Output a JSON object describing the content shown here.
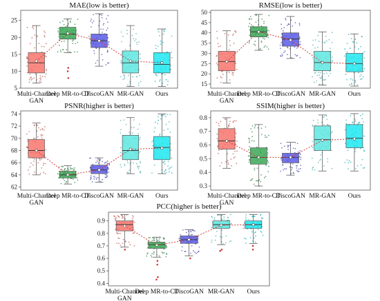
{
  "chart_data": [
    {
      "type": "box",
      "title": "MAE(low is better)",
      "categories": [
        "Multi-Channel GAN",
        "Deep MR-to-CT",
        "DiscoGAN",
        "MR-GAN",
        "Ours"
      ],
      "yticks": [
        5,
        10,
        15,
        20,
        25
      ],
      "ylim": [
        5,
        28
      ],
      "colors": [
        "#f8766d",
        "#3aa856",
        "#5a5ae6",
        "#5ee6e0",
        "#1ee8f0"
      ],
      "boxes": [
        {
          "min": 6.5,
          "q1": 9.5,
          "median": 12.5,
          "q3": 15.5,
          "max": 23.5,
          "mean": 13.0
        },
        {
          "min": 15.5,
          "q1": 19.5,
          "median": 21.0,
          "q3": 23.0,
          "max": 25.5,
          "mean": 21.2
        },
        {
          "min": 11.5,
          "q1": 17.0,
          "median": 19.0,
          "q3": 21.0,
          "max": 27.0,
          "mean": 19.0
        },
        {
          "min": 5.5,
          "q1": 9.5,
          "median": 12.5,
          "q3": 16.0,
          "max": 23.5,
          "mean": 13.0
        },
        {
          "min": 5.5,
          "q1": 9.5,
          "median": 12.0,
          "q3": 15.5,
          "max": 22.5,
          "mean": 12.5
        }
      ],
      "outliers": [
        [],
        [
          8,
          10,
          11
        ],
        [],
        [],
        []
      ]
    },
    {
      "type": "box",
      "title": "RMSE(low is better)",
      "categories": [
        "Multi-Channel GAN",
        "Deep MR-to-CT",
        "DiscoGAN",
        "MR-GAN",
        "Ours"
      ],
      "yticks": [
        15,
        20,
        25,
        30,
        35,
        40,
        45,
        50
      ],
      "ylim": [
        13,
        51
      ],
      "colors": [
        "#f8766d",
        "#3aa856",
        "#5a5ae6",
        "#5ee6e0",
        "#1ee8f0"
      ],
      "boxes": [
        {
          "min": 15.5,
          "q1": 21.5,
          "median": 26.0,
          "q3": 31.0,
          "max": 41.0,
          "mean": 26.0
        },
        {
          "min": 31.5,
          "q1": 38.0,
          "median": 40.5,
          "q3": 43.0,
          "max": 49.0,
          "mean": 40.5
        },
        {
          "min": 27.5,
          "q1": 33.5,
          "median": 37.0,
          "q3": 40.0,
          "max": 48.0,
          "mean": 36.5
        },
        {
          "min": 14.5,
          "q1": 21.5,
          "median": 25.5,
          "q3": 31.0,
          "max": 40.5,
          "mean": 25.5
        },
        {
          "min": 14.0,
          "q1": 21.0,
          "median": 25.0,
          "q3": 30.0,
          "max": 39.5,
          "mean": 25.0
        }
      ],
      "outliers": [
        [],
        [],
        [],
        [],
        []
      ]
    },
    {
      "type": "box",
      "title": "PSNR(higher is better)",
      "categories": [
        "Multi-Channel GAN",
        "Deep MR-to-CT",
        "DiscoGAN",
        "MR-GAN",
        "Ours"
      ],
      "yticks": [
        62,
        64,
        66,
        68,
        70,
        72,
        74
      ],
      "ylim": [
        61.5,
        74.5
      ],
      "colors": [
        "#f8766d",
        "#3aa856",
        "#5a5ae6",
        "#5ee6e0",
        "#1ee8f0"
      ],
      "boxes": [
        {
          "min": 64.0,
          "q1": 66.8,
          "median": 68.0,
          "q3": 69.8,
          "max": 72.5,
          "mean": 68.0
        },
        {
          "min": 62.5,
          "q1": 63.5,
          "median": 64.0,
          "q3": 64.6,
          "max": 65.5,
          "mean": 64.0
        },
        {
          "min": 62.8,
          "q1": 64.2,
          "median": 64.8,
          "q3": 65.6,
          "max": 66.8,
          "mean": 64.8
        },
        {
          "min": 64.2,
          "q1": 66.5,
          "median": 68.0,
          "q3": 70.5,
          "max": 73.4,
          "mean": 68.2
        },
        {
          "min": 64.2,
          "q1": 66.5,
          "median": 68.5,
          "q3": 70.3,
          "max": 74.0,
          "mean": 68.4
        }
      ],
      "outliers": [
        [],
        [],
        [],
        [],
        []
      ]
    },
    {
      "type": "box",
      "title": "SSIM(higher is better)",
      "categories": [
        "Multi-Channel GAN",
        "Deep MR-to-CT",
        "DiscoGAN",
        "MR-GAN",
        "Ours"
      ],
      "yticks": [
        0.3,
        0.4,
        0.5,
        0.6,
        0.7,
        0.8
      ],
      "ytick_labels": [
        "0.3",
        "0.4",
        "0.5",
        "0.6",
        "0.7",
        "0.8"
      ],
      "ylim": [
        0.27,
        0.85
      ],
      "colors": [
        "#f8766d",
        "#3aa856",
        "#5a5ae6",
        "#5ee6e0",
        "#1ee8f0"
      ],
      "boxes": [
        {
          "min": 0.43,
          "q1": 0.57,
          "median": 0.63,
          "q3": 0.72,
          "max": 0.8,
          "mean": 0.63
        },
        {
          "min": 0.3,
          "q1": 0.46,
          "median": 0.51,
          "q3": 0.58,
          "max": 0.75,
          "mean": 0.51
        },
        {
          "min": 0.38,
          "q1": 0.47,
          "median": 0.51,
          "q3": 0.54,
          "max": 0.62,
          "mean": 0.51
        },
        {
          "min": 0.41,
          "q1": 0.56,
          "median": 0.64,
          "q3": 0.74,
          "max": 0.82,
          "mean": 0.635
        },
        {
          "min": 0.41,
          "q1": 0.58,
          "median": 0.65,
          "q3": 0.75,
          "max": 0.83,
          "mean": 0.645
        }
      ],
      "outliers": [
        [],
        [],
        [],
        [],
        []
      ]
    },
    {
      "type": "box",
      "title": "PCC(higher is better)",
      "categories": [
        "Multi-Channel GAN",
        "Deep MR-to-CT",
        "DiscoGAN",
        "MR-GAN",
        "Ours"
      ],
      "yticks": [
        0.4,
        0.5,
        0.6,
        0.7,
        0.8,
        0.9
      ],
      "ytick_labels": [
        "0.4",
        "0.5",
        "0.6",
        "0.7",
        "0.8",
        "0.9"
      ],
      "ylim": [
        0.38,
        0.97
      ],
      "colors": [
        "#f8766d",
        "#3aa856",
        "#5a5ae6",
        "#5ee6e0",
        "#1ee8f0"
      ],
      "boxes": [
        {
          "min": 0.69,
          "q1": 0.82,
          "median": 0.87,
          "q3": 0.9,
          "max": 0.95,
          "mean": 0.86
        },
        {
          "min": 0.61,
          "q1": 0.68,
          "median": 0.71,
          "q3": 0.73,
          "max": 0.77,
          "mean": 0.705
        },
        {
          "min": 0.62,
          "q1": 0.72,
          "median": 0.75,
          "q3": 0.78,
          "max": 0.83,
          "mean": 0.75
        },
        {
          "min": 0.71,
          "q1": 0.84,
          "median": 0.87,
          "q3": 0.9,
          "max": 0.95,
          "mean": 0.865
        },
        {
          "min": 0.72,
          "q1": 0.84,
          "median": 0.87,
          "q3": 0.9,
          "max": 0.95,
          "mean": 0.87
        }
      ],
      "outliers": [
        [
          0.67
        ],
        [
          0.58,
          0.55,
          0.45,
          0.43
        ],
        [
          0.6
        ],
        [
          0.67,
          0.66
        ],
        [
          0.67,
          0.7
        ]
      ]
    }
  ]
}
